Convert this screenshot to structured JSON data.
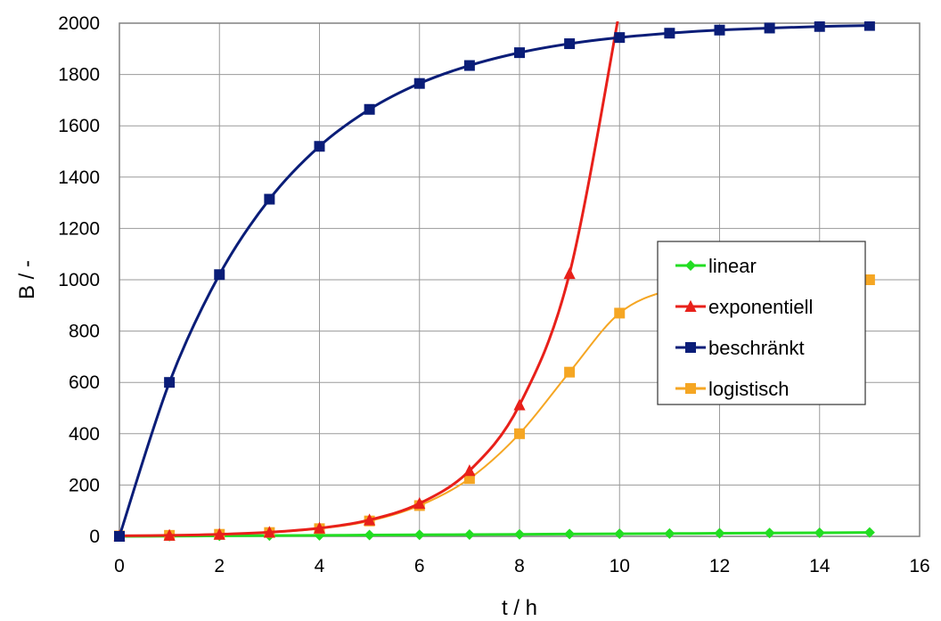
{
  "chart_data": {
    "type": "line",
    "xlabel": "t / h",
    "ylabel": "B / -",
    "xlim": [
      0,
      16
    ],
    "ylim": [
      0,
      2000
    ],
    "x_ticks": [
      0,
      2,
      4,
      6,
      8,
      10,
      12,
      14,
      16
    ],
    "y_ticks": [
      0,
      200,
      400,
      600,
      800,
      1000,
      1200,
      1400,
      1600,
      1800,
      2000
    ],
    "grid": true,
    "legend_position": "right",
    "series": [
      {
        "name": "linear",
        "color": "#22dd22",
        "marker": "diamond",
        "x": [
          0,
          1,
          2,
          3,
          4,
          5,
          6,
          7,
          8,
          9,
          10,
          11,
          12,
          13,
          14,
          15
        ],
        "y": [
          0,
          1,
          2,
          3,
          4,
          5,
          6,
          7,
          8,
          9,
          10,
          11,
          12,
          13,
          14,
          15
        ]
      },
      {
        "name": "exponentiell",
        "color": "#e8201a",
        "marker": "triangle",
        "x": [
          0,
          1,
          2,
          3,
          4,
          5,
          6,
          7,
          8,
          9,
          10
        ],
        "y": [
          2,
          4,
          8,
          16,
          32,
          64,
          128,
          256,
          512,
          1024,
          2048
        ]
      },
      {
        "name": "beschränkt",
        "color": "#0a1d78",
        "marker": "square",
        "x": [
          0,
          1,
          2,
          3,
          4,
          5,
          6,
          7,
          8,
          9,
          10,
          11,
          12,
          13,
          14,
          15
        ],
        "y": [
          0,
          600,
          1020,
          1314,
          1520,
          1664,
          1765,
          1835,
          1885,
          1920,
          1944,
          1961,
          1973,
          1981,
          1987,
          1991
        ]
      },
      {
        "name": "logistisch",
        "color": "#f5a623",
        "marker": "square",
        "x": [
          0,
          1,
          2,
          3,
          4,
          5,
          6,
          7,
          8,
          9,
          10,
          11,
          12,
          13,
          14,
          15
        ],
        "y": [
          2,
          4,
          8,
          15,
          30,
          60,
          120,
          225,
          400,
          640,
          870,
          960,
          985,
          995,
          998,
          1000
        ]
      }
    ]
  }
}
